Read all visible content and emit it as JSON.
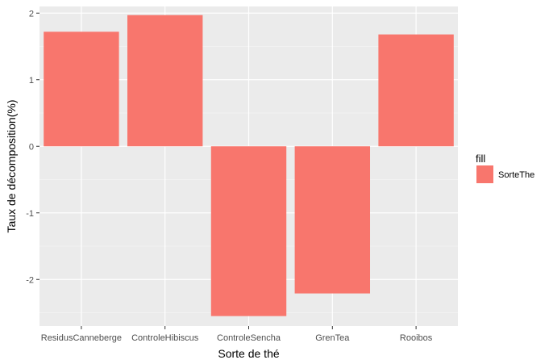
{
  "chart_data": {
    "type": "bar",
    "categories": [
      "ResidusCanneberge",
      "ControleHibiscus",
      "ControleSencha",
      "GrenTea",
      "Rooibos"
    ],
    "values": [
      1.72,
      1.97,
      -2.55,
      -2.21,
      1.68
    ],
    "xlabel": "Sorte de thé",
    "ylabel": "Taux de décomposition(%)",
    "ylim": [
      -2.7,
      2.1
    ],
    "yticks": [
      -2,
      -1,
      0,
      1,
      2
    ],
    "grid": true,
    "legend": {
      "title": "fill",
      "entries": [
        "SorteThe"
      ],
      "placement": "right"
    },
    "colors": {
      "bar": "#F8766D",
      "panel": "#EBEBEB",
      "grid_major": "#FFFFFF",
      "grid_minor": "#F4F4F4"
    }
  }
}
